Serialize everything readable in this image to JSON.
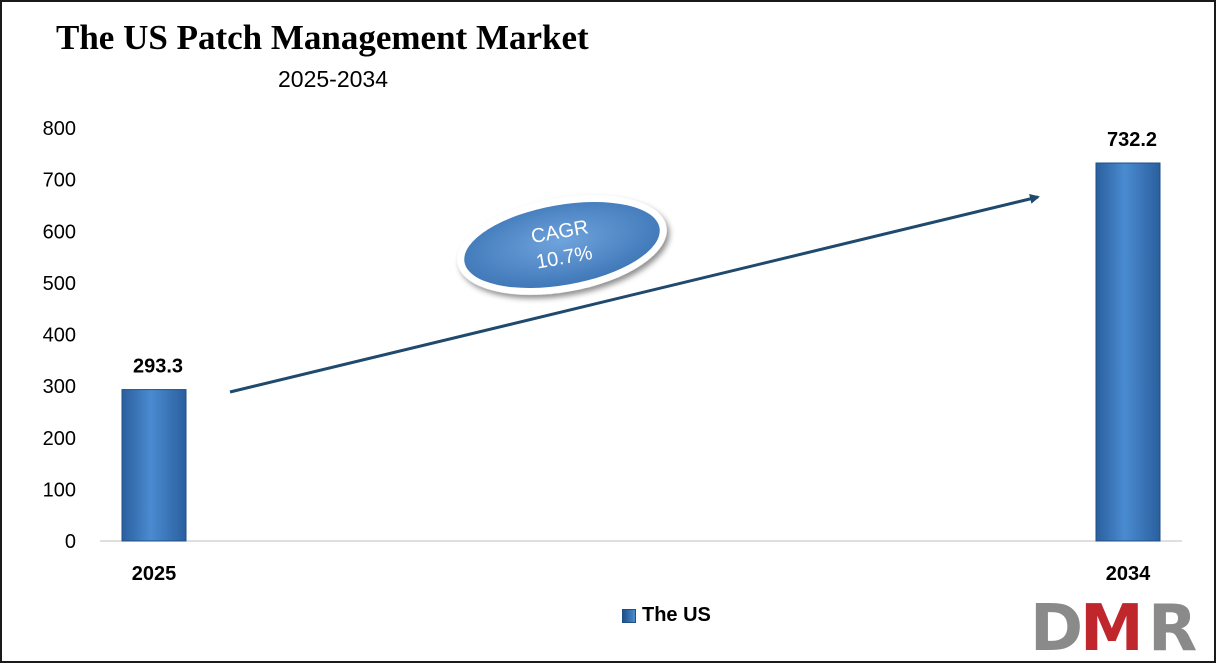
{
  "chart_data": {
    "type": "bar",
    "title": "The US Patch Management Market",
    "subtitle": "2025-2034",
    "categories": [
      "2025",
      "2034"
    ],
    "series": [
      {
        "name": "The US",
        "values": [
          293.3,
          732.2
        ]
      }
    ],
    "data_labels": [
      "293.3",
      "732.2"
    ],
    "ylim": [
      0,
      800
    ],
    "y_ticks": [
      0,
      100,
      200,
      300,
      400,
      500,
      600,
      700,
      800
    ],
    "grid": false,
    "legend_position": "bottom",
    "annotation": {
      "line1": "CAGR",
      "line2": "10.7%"
    },
    "colors": {
      "bar": "#3a7cc4",
      "bar_dark": "#1f4f86",
      "arrow": "#1f4a6e"
    }
  },
  "logo": {
    "text": "DMR",
    "colors": {
      "d": "#8a8a8a",
      "m": "#c0272d",
      "r": "#8a8a8a"
    }
  }
}
